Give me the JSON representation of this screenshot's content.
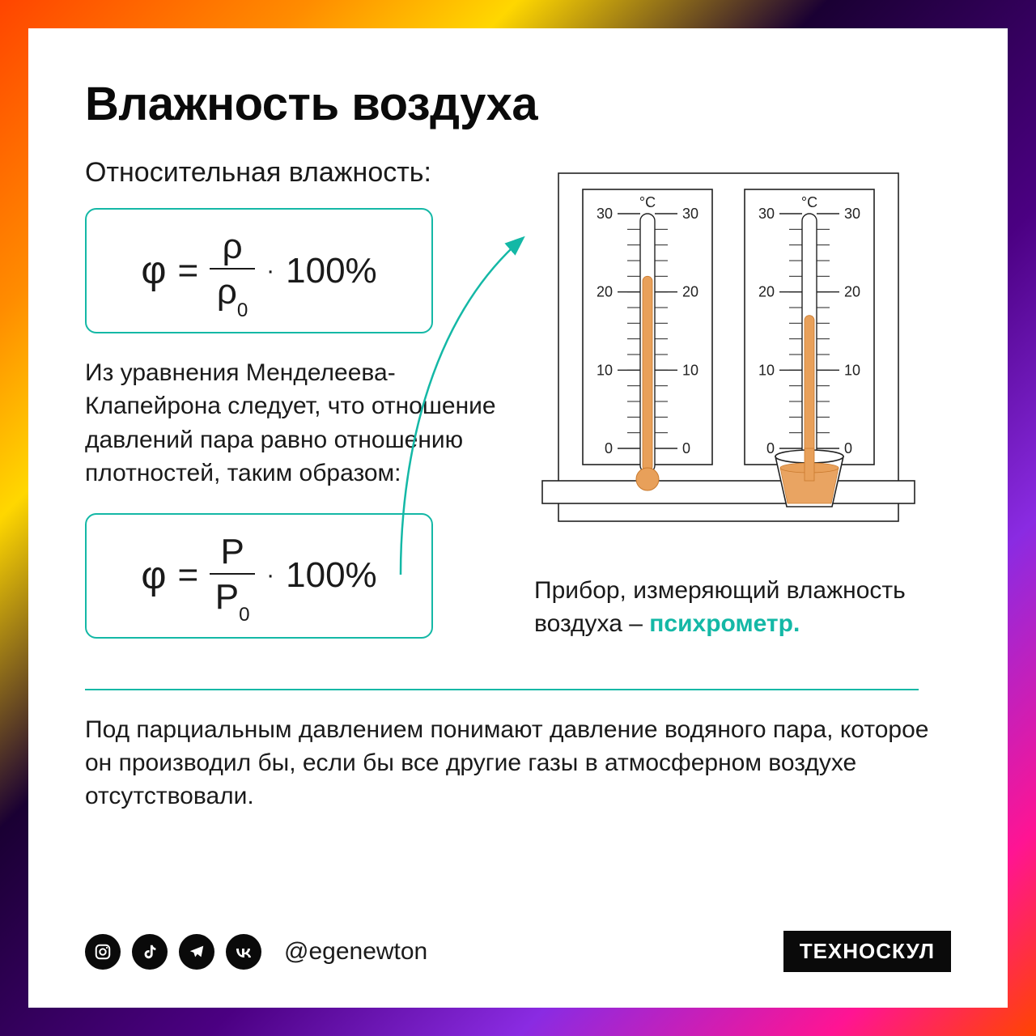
{
  "title": "Влажность воздуха",
  "subtitle": "Относительная влажность:",
  "formula1": {
    "lhs": "φ",
    "eq": "=",
    "num": "ρ",
    "den_base": "ρ",
    "den_sub": "0",
    "dot": "·",
    "rhs": "100%",
    "border_color": "#14b8a6",
    "fontsize": 44
  },
  "middle_text": "Из уравнения Менделеева-Клапейрона следует, что отношение давлений пара равно отношению плотностей, таким образом:",
  "formula2": {
    "lhs": "φ",
    "eq": "=",
    "num": "P",
    "den_base": "P",
    "den_sub": "0",
    "dot": "·",
    "rhs": "100%",
    "border_color": "#14b8a6",
    "fontsize": 44
  },
  "device_text_pre": "Прибор, измеряющий влажность воздуха – ",
  "device_highlight": "психрометр.",
  "footnote": "Под парциальным давлением понимают давление водяного пара, которое он производил бы, если бы все другие газы в атмосферном воздухе отсутствовали.",
  "footer": {
    "handle": "@egenewton",
    "brand": "ТЕХНОСКУЛ"
  },
  "colors": {
    "accent": "#14b8a6",
    "text": "#1a1a1a",
    "card_bg": "#ffffff",
    "footer_bg": "#0a0a0a",
    "liquid": "#e8a05a",
    "liquid_stroke": "#c97a2e"
  },
  "psychrometer": {
    "unit_label": "°C",
    "scale_labels": [
      "30",
      "20",
      "10",
      "0"
    ],
    "thermo1_level_c": 22,
    "thermo2_level_c": 17,
    "tick_min": 0,
    "tick_max": 30,
    "major_step": 10,
    "minor_per_major": 5
  },
  "arrow": {
    "color": "#14b8a6",
    "stroke_width": 2.5
  },
  "typography": {
    "title_fontsize": 58,
    "subtitle_fontsize": 34,
    "body_fontsize": 30
  }
}
